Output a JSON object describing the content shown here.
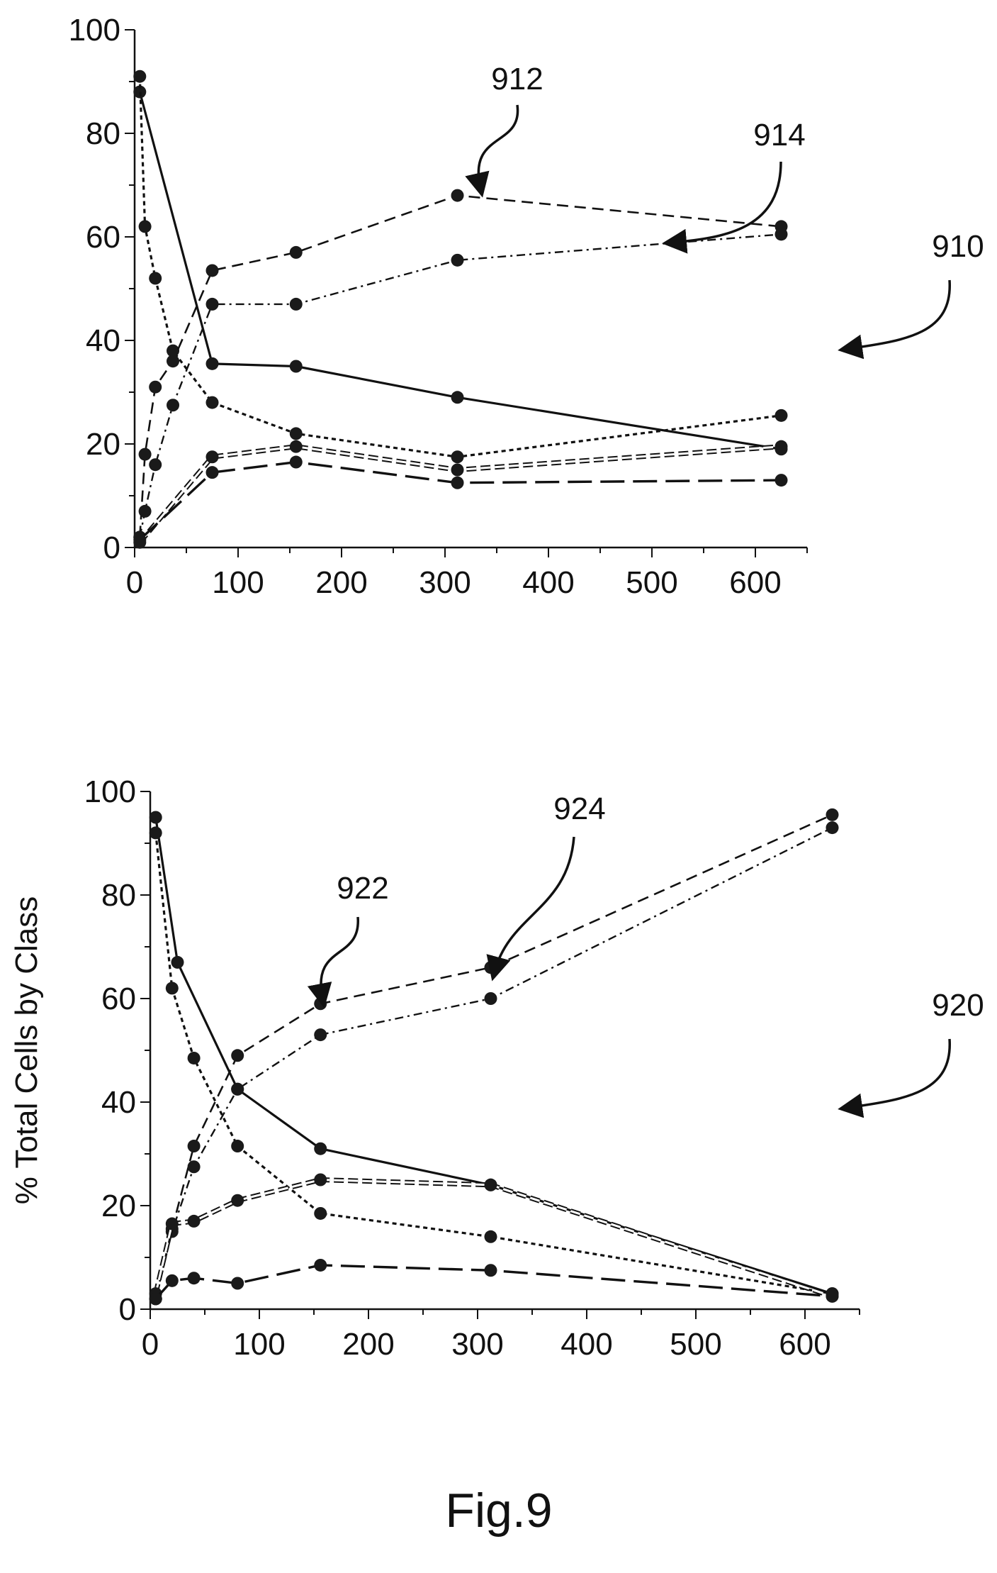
{
  "figure_label": "Fig.9",
  "chart_data": [
    {
      "ref_label": "910",
      "type": "line",
      "xlim": [
        0,
        650
      ],
      "ylim": [
        0,
        100
      ],
      "x_ticks": [
        "0",
        "100",
        "200",
        "300",
        "400",
        "500",
        "600"
      ],
      "y_ticks": [
        "0",
        "20",
        "40",
        "60",
        "80",
        "100"
      ],
      "ylabel": "",
      "series": [
        {
          "style": "solid",
          "x": [
            5,
            75,
            156,
            312,
            625
          ],
          "y": [
            88,
            35.5,
            35,
            29,
            19
          ]
        },
        {
          "style": "dotted",
          "x": [
            5,
            10,
            20,
            37,
            75,
            156,
            312,
            625
          ],
          "y": [
            91,
            62,
            52,
            38,
            28,
            22,
            17.5,
            25.5
          ]
        },
        {
          "style": "dashed",
          "ref_label": "912",
          "x": [
            5,
            10,
            20,
            37,
            75,
            156,
            312,
            625
          ],
          "y": [
            2,
            18,
            31,
            36,
            53.5,
            57,
            68,
            62
          ]
        },
        {
          "style": "dash-dot",
          "ref_label": "914",
          "x": [
            5,
            10,
            20,
            37,
            75,
            156,
            312,
            625
          ],
          "y": [
            2,
            7,
            16,
            27.5,
            47,
            47,
            55.5,
            60.5
          ]
        },
        {
          "style": "double-dashed",
          "x": [
            5,
            75,
            156,
            312,
            625
          ],
          "y": [
            1,
            17.5,
            19.5,
            15,
            19.5
          ]
        },
        {
          "style": "long-dash",
          "x": [
            5,
            75,
            156,
            312,
            625
          ],
          "y": [
            1.5,
            14.5,
            16.5,
            12.5,
            13
          ]
        }
      ]
    },
    {
      "ref_label": "920",
      "type": "line",
      "xlim": [
        0,
        650
      ],
      "ylim": [
        0,
        100
      ],
      "x_ticks": [
        "0",
        "100",
        "200",
        "300",
        "400",
        "500",
        "600"
      ],
      "y_ticks": [
        "0",
        "20",
        "40",
        "60",
        "80",
        "100"
      ],
      "ylabel": "% Total Cells by Class",
      "series": [
        {
          "style": "solid",
          "x": [
            5,
            25,
            80,
            156,
            312,
            625
          ],
          "y": [
            95,
            67,
            42.5,
            31,
            24,
            3
          ]
        },
        {
          "style": "dotted",
          "x": [
            5,
            20,
            40,
            80,
            156,
            312,
            625
          ],
          "y": [
            92,
            62,
            48.5,
            31.5,
            18.5,
            14,
            3
          ]
        },
        {
          "style": "dashed",
          "ref_label": "922",
          "x": [
            5,
            20,
            40,
            80,
            156,
            312,
            625
          ],
          "y": [
            2,
            15.5,
            31.5,
            49,
            59,
            66,
            95.5
          ]
        },
        {
          "style": "dash-dot",
          "ref_label": "924",
          "x": [
            5,
            20,
            40,
            80,
            156,
            312,
            625
          ],
          "y": [
            2,
            15,
            27.5,
            42.5,
            53,
            60,
            93
          ]
        },
        {
          "style": "double-dashed",
          "x": [
            5,
            20,
            40,
            80,
            156,
            312,
            625
          ],
          "y": [
            3,
            16.5,
            17,
            21,
            25,
            24,
            2.5
          ]
        },
        {
          "style": "long-dash",
          "x": [
            5,
            20,
            40,
            80,
            156,
            312,
            625
          ],
          "y": [
            2,
            5.5,
            6,
            5,
            8.5,
            7.5,
            2.5
          ]
        }
      ]
    }
  ]
}
